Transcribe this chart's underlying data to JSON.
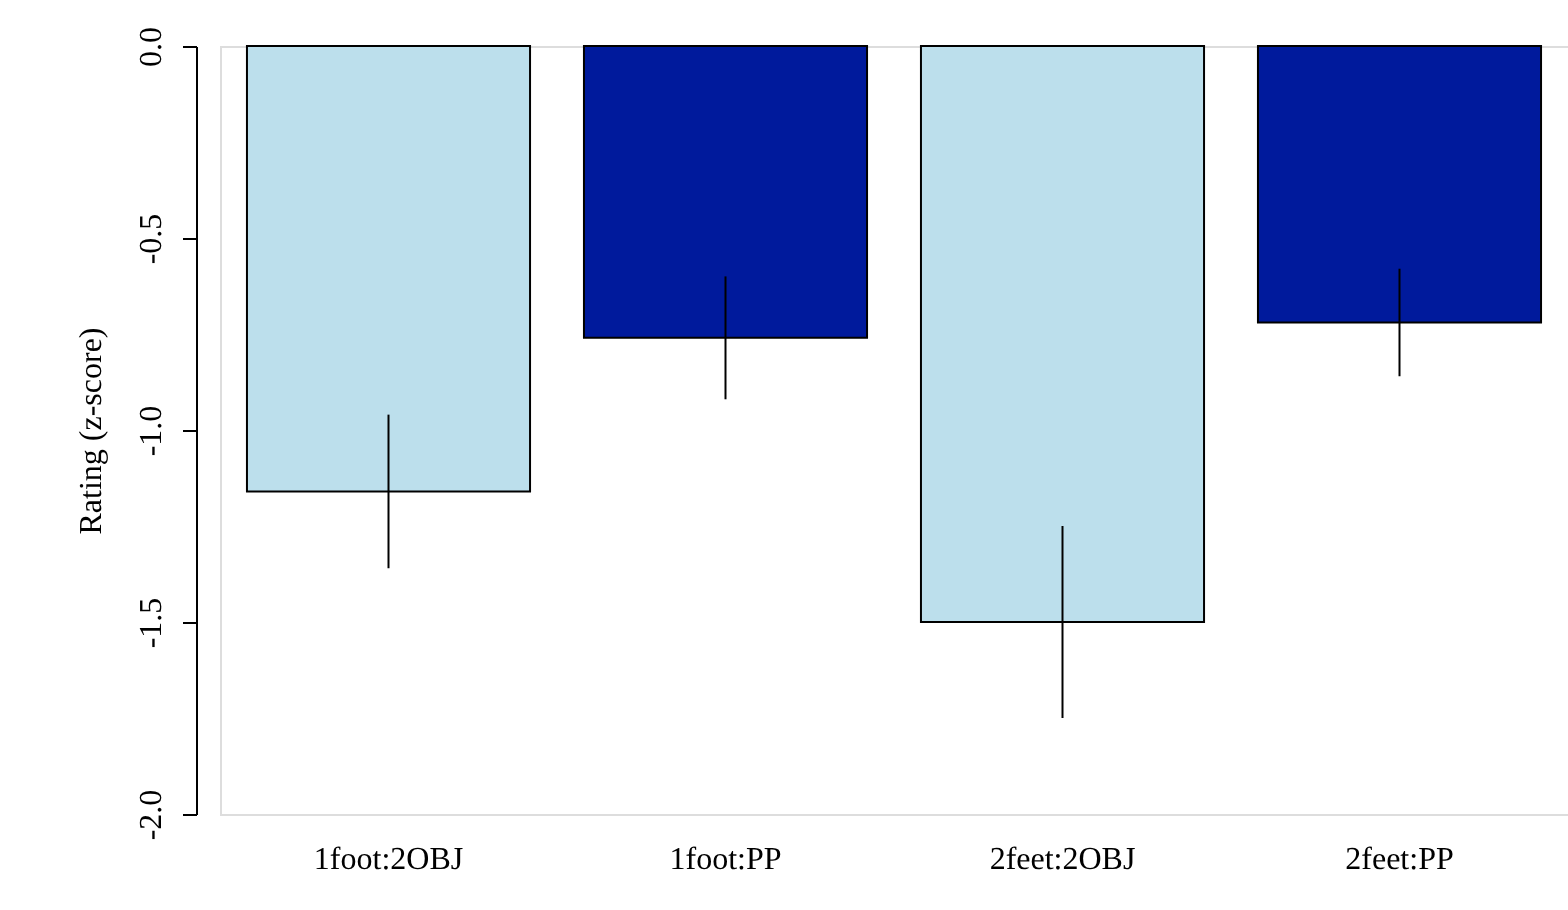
{
  "chart_data": {
    "type": "bar",
    "ylabel": "Rating (z-score)",
    "categories": [
      "1foot:2OBJ",
      "1foot:PP",
      "2feet:2OBJ",
      "2feet:PP"
    ],
    "values": [
      -1.16,
      -0.76,
      -1.5,
      -0.72
    ],
    "errors": [
      0.2,
      0.16,
      0.25,
      0.14
    ],
    "colors": [
      "#bcdfec",
      "#001a9c",
      "#bcdfec",
      "#001a9c"
    ],
    "ylim": [
      -2.0,
      0.0
    ],
    "yticks": [
      {
        "value": -2.0,
        "label": "-2.0"
      },
      {
        "value": -1.5,
        "label": "-1.5"
      },
      {
        "value": -1.0,
        "label": "-1.0"
      },
      {
        "value": -0.5,
        "label": "-0.5"
      },
      {
        "value": 0.0,
        "label": "0.0"
      }
    ],
    "grid": false
  }
}
